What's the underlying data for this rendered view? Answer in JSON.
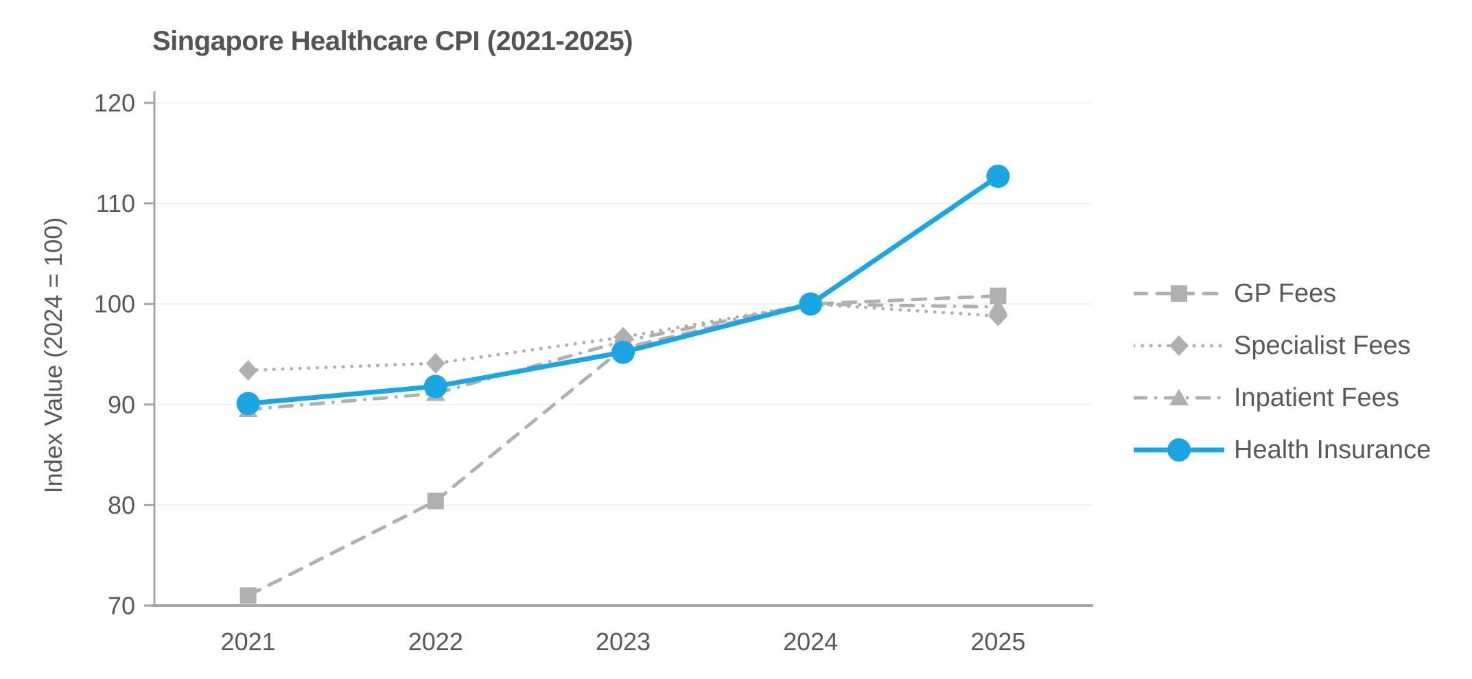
{
  "chart_data": {
    "type": "line",
    "title": "Singapore Healthcare CPI (2021-2025)",
    "ylabel": "Index Value (2024 = 100)",
    "xlabel": "",
    "categories": [
      "2021",
      "2022",
      "2023",
      "2024",
      "2025"
    ],
    "yticks": [
      70,
      80,
      90,
      100,
      110,
      120
    ],
    "ylim": [
      70,
      120
    ],
    "grid": "horizontal",
    "legend_position": "right",
    "background_color": "#FFFFFF",
    "gridline_color": "#F1F1F1",
    "axis_color": "#A6A6A6",
    "text_color": "#595959",
    "series": [
      {
        "name": "GP Fees",
        "values": [
          71.0,
          80.4,
          95.6,
          100.0,
          100.8
        ],
        "color": "#B0B0B0",
        "line_style": "dashed",
        "marker": "square"
      },
      {
        "name": "Specialist Fees",
        "values": [
          93.4,
          94.1,
          96.7,
          100.0,
          98.8
        ],
        "color": "#B0B0B0",
        "line_style": "dotted",
        "marker": "diamond"
      },
      {
        "name": "Inpatient Fees",
        "values": [
          89.5,
          91.1,
          96.3,
          100.0,
          99.7
        ],
        "color": "#B0B0B0",
        "line_style": "dash-dot",
        "marker": "triangle"
      },
      {
        "name": "Health Insurance",
        "values": [
          90.1,
          91.8,
          95.2,
          100.0,
          112.7
        ],
        "color": "#1BA5E3",
        "line_style": "solid",
        "marker": "circle"
      }
    ]
  }
}
